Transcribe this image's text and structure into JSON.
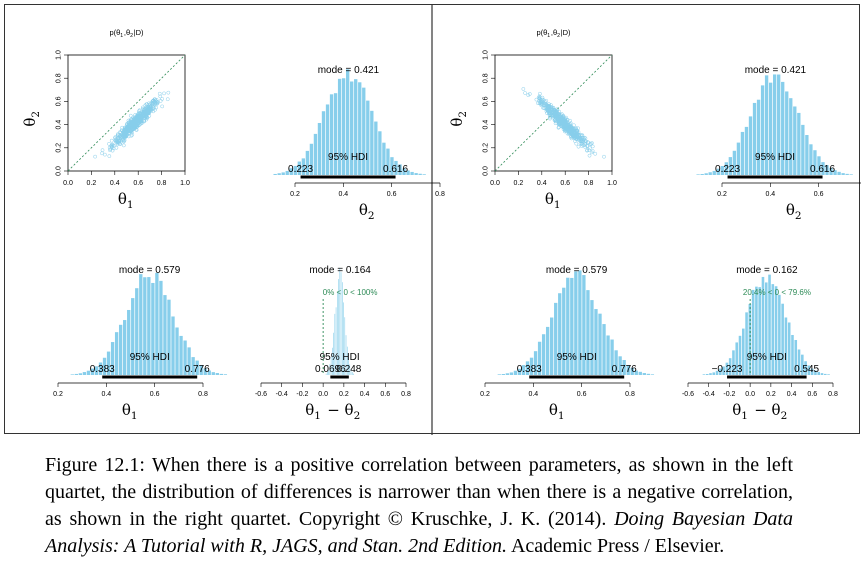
{
  "chart_data": [
    {
      "quartet": "left",
      "panels": [
        {
          "type": "scatter",
          "title": "p(θ1,θ2|D)",
          "xlabel": "θ1",
          "ylabel": "θ2",
          "xlim": [
            0,
            1
          ],
          "ylim": [
            0,
            1
          ],
          "xticks": [
            "0.0",
            "0.2",
            "0.4",
            "0.6",
            "0.8",
            "1.0"
          ],
          "yticks": [
            "0.0",
            "0.2",
            "0.4",
            "0.6",
            "0.8",
            "1.0"
          ],
          "correlation": "positive",
          "mean": [
            0.58,
            0.42
          ],
          "reference_line": "identity",
          "point_color": "#87CEEB"
        },
        {
          "type": "bar",
          "xlabel": "θ2",
          "xlim": [
            0.2,
            0.8
          ],
          "xticks": [
            "0.2",
            "0.4",
            "0.6",
            "0.8"
          ],
          "mode_label": "mode = 0.421",
          "mode": 0.421,
          "sd": 0.1,
          "hdi_label": "95% HDI",
          "hdi": [
            0.223,
            0.616
          ],
          "hdi_low_label": "0.223",
          "hdi_high_label": "0.616"
        },
        {
          "type": "bar",
          "xlabel": "θ1",
          "xlim": [
            0.2,
            0.8
          ],
          "xticks": [
            "0.2",
            "0.4",
            "0.6",
            "0.8"
          ],
          "mode_label": "mode = 0.579",
          "mode": 0.579,
          "sd": 0.1,
          "hdi_label": "95% HDI",
          "hdi": [
            0.383,
            0.776
          ],
          "hdi_low_label": "0.383",
          "hdi_high_label": "0.776"
        },
        {
          "type": "bar",
          "xlabel": "θ1 − θ2",
          "xlim": [
            -0.6,
            0.8
          ],
          "xticks": [
            "-0.6",
            "-0.4",
            "-0.2",
            "0.0",
            "0.2",
            "0.4",
            "0.6",
            "0.8"
          ],
          "mode_label": "mode = 0.164",
          "mode": 0.164,
          "sd": 0.045,
          "hdi_label": "95% HDI",
          "hdi": [
            0.0696,
            0.248
          ],
          "hdi_low_label": "0.0696",
          "hdi_high_label": "0.248",
          "comp_label": "0% < 0 < 100%",
          "comp_value": 0
        }
      ]
    },
    {
      "quartet": "right",
      "panels": [
        {
          "type": "scatter",
          "title": "p(θ1,θ2|D)",
          "xlabel": "θ1",
          "ylabel": "θ2",
          "xlim": [
            0,
            1
          ],
          "ylim": [
            0,
            1
          ],
          "xticks": [
            "0.0",
            "0.2",
            "0.4",
            "0.6",
            "0.8",
            "1.0"
          ],
          "yticks": [
            "0.0",
            "0.2",
            "0.4",
            "0.6",
            "0.8",
            "1.0"
          ],
          "correlation": "negative",
          "mean": [
            0.58,
            0.42
          ],
          "reference_line": "identity",
          "point_color": "#87CEEB"
        },
        {
          "type": "bar",
          "xlabel": "θ2",
          "xlim": [
            0.2,
            0.8
          ],
          "xticks": [
            "0.2",
            "0.4",
            "0.6",
            "0.8"
          ],
          "mode_label": "mode = 0.421",
          "mode": 0.421,
          "sd": 0.1,
          "hdi_label": "95% HDI",
          "hdi": [
            0.223,
            0.616
          ],
          "hdi_low_label": "0.223",
          "hdi_high_label": "0.616"
        },
        {
          "type": "bar",
          "xlabel": "θ1",
          "xlim": [
            0.2,
            0.8
          ],
          "xticks": [
            "0.2",
            "0.4",
            "0.6",
            "0.8"
          ],
          "mode_label": "mode = 0.579",
          "mode": 0.579,
          "sd": 0.1,
          "hdi_label": "95% HDI",
          "hdi": [
            0.383,
            0.776
          ],
          "hdi_low_label": "0.383",
          "hdi_high_label": "0.776"
        },
        {
          "type": "bar",
          "xlabel": "θ1 − θ2",
          "xlim": [
            -0.6,
            0.8
          ],
          "xticks": [
            "-0.6",
            "-0.4",
            "-0.2",
            "0.0",
            "0.2",
            "0.4",
            "0.6",
            "0.8"
          ],
          "mode_label": "mode = 0.162",
          "mode": 0.162,
          "sd": 0.19,
          "hdi_label": "95% HDI",
          "hdi": [
            -0.223,
            0.545
          ],
          "hdi_low_label": "−0.223",
          "hdi_high_label": "0.545",
          "comp_label": "20.4% < 0 < 79.6%",
          "comp_value": 0
        }
      ]
    }
  ],
  "colors": {
    "bar": "#87CEEB",
    "comp": "#2E8B57",
    "hdi": "#000000",
    "diag": "#2E8B57"
  },
  "caption": {
    "part1": "Figure 12.1: When there is a positive correlation between parameters, as shown in the left quartet, the distribution of differences is narrower than when there is a negative correlation, as shown in the right quartet. Copyright © Kruschke, J. K. (2014). ",
    "title": "Doing Bayesian Data Analysis: A Tutorial with R, JAGS, and Stan. 2nd Edition.",
    "part2": " Academic Press / Elsevier."
  }
}
